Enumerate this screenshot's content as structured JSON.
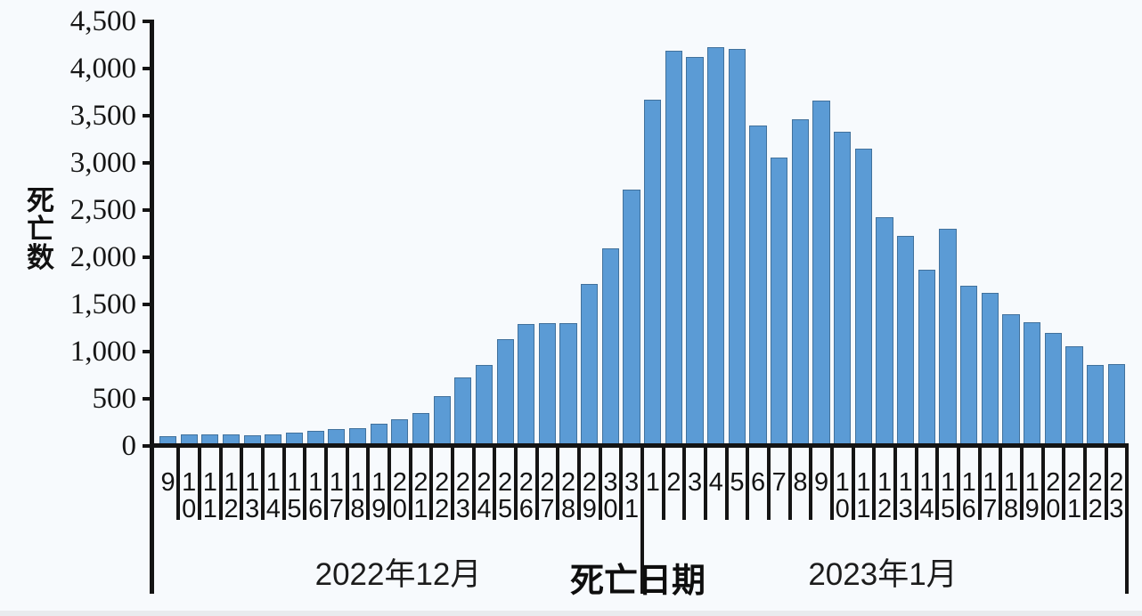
{
  "chart_data": {
    "type": "bar",
    "title": "",
    "ylabel": "死亡数",
    "xlabel": "死亡日期",
    "ylim": [
      0,
      4500
    ],
    "y_tick_step": 500,
    "y_tick_labels": [
      "0",
      "500",
      "1,000",
      "1,500",
      "2,000",
      "2,500",
      "3,000",
      "3,500",
      "4,000",
      "4,500"
    ],
    "grid": false,
    "legend": false,
    "bar_color": "#5b9bd5",
    "bar_border_color": "#41719c",
    "axis_color": "#141414",
    "groups": [
      {
        "label": "2022年12月",
        "days": [
          "9",
          "10",
          "11",
          "12",
          "13",
          "14",
          "15",
          "16",
          "17",
          "18",
          "19",
          "20",
          "21",
          "22",
          "23",
          "24",
          "25",
          "26",
          "27",
          "28",
          "29",
          "30",
          "31"
        ],
        "values": [
          100,
          120,
          125,
          120,
          115,
          120,
          140,
          160,
          180,
          190,
          235,
          280,
          345,
          530,
          730,
          860,
          1130,
          1290,
          1300,
          1300,
          1720,
          2090,
          2720
        ]
      },
      {
        "label": "2023年1月",
        "days": [
          "1",
          "2",
          "3",
          "4",
          "5",
          "6",
          "7",
          "8",
          "9",
          "10",
          "11",
          "12",
          "13",
          "14",
          "15",
          "16",
          "17",
          "18",
          "19",
          "20",
          "21",
          "22",
          "23"
        ],
        "values": [
          3670,
          4190,
          4120,
          4230,
          4210,
          3400,
          3060,
          3460,
          3660,
          3330,
          3150,
          2420,
          2230,
          1870,
          2300,
          1700,
          1620,
          1400,
          1310,
          1200,
          1060,
          860,
          870
        ]
      }
    ]
  }
}
